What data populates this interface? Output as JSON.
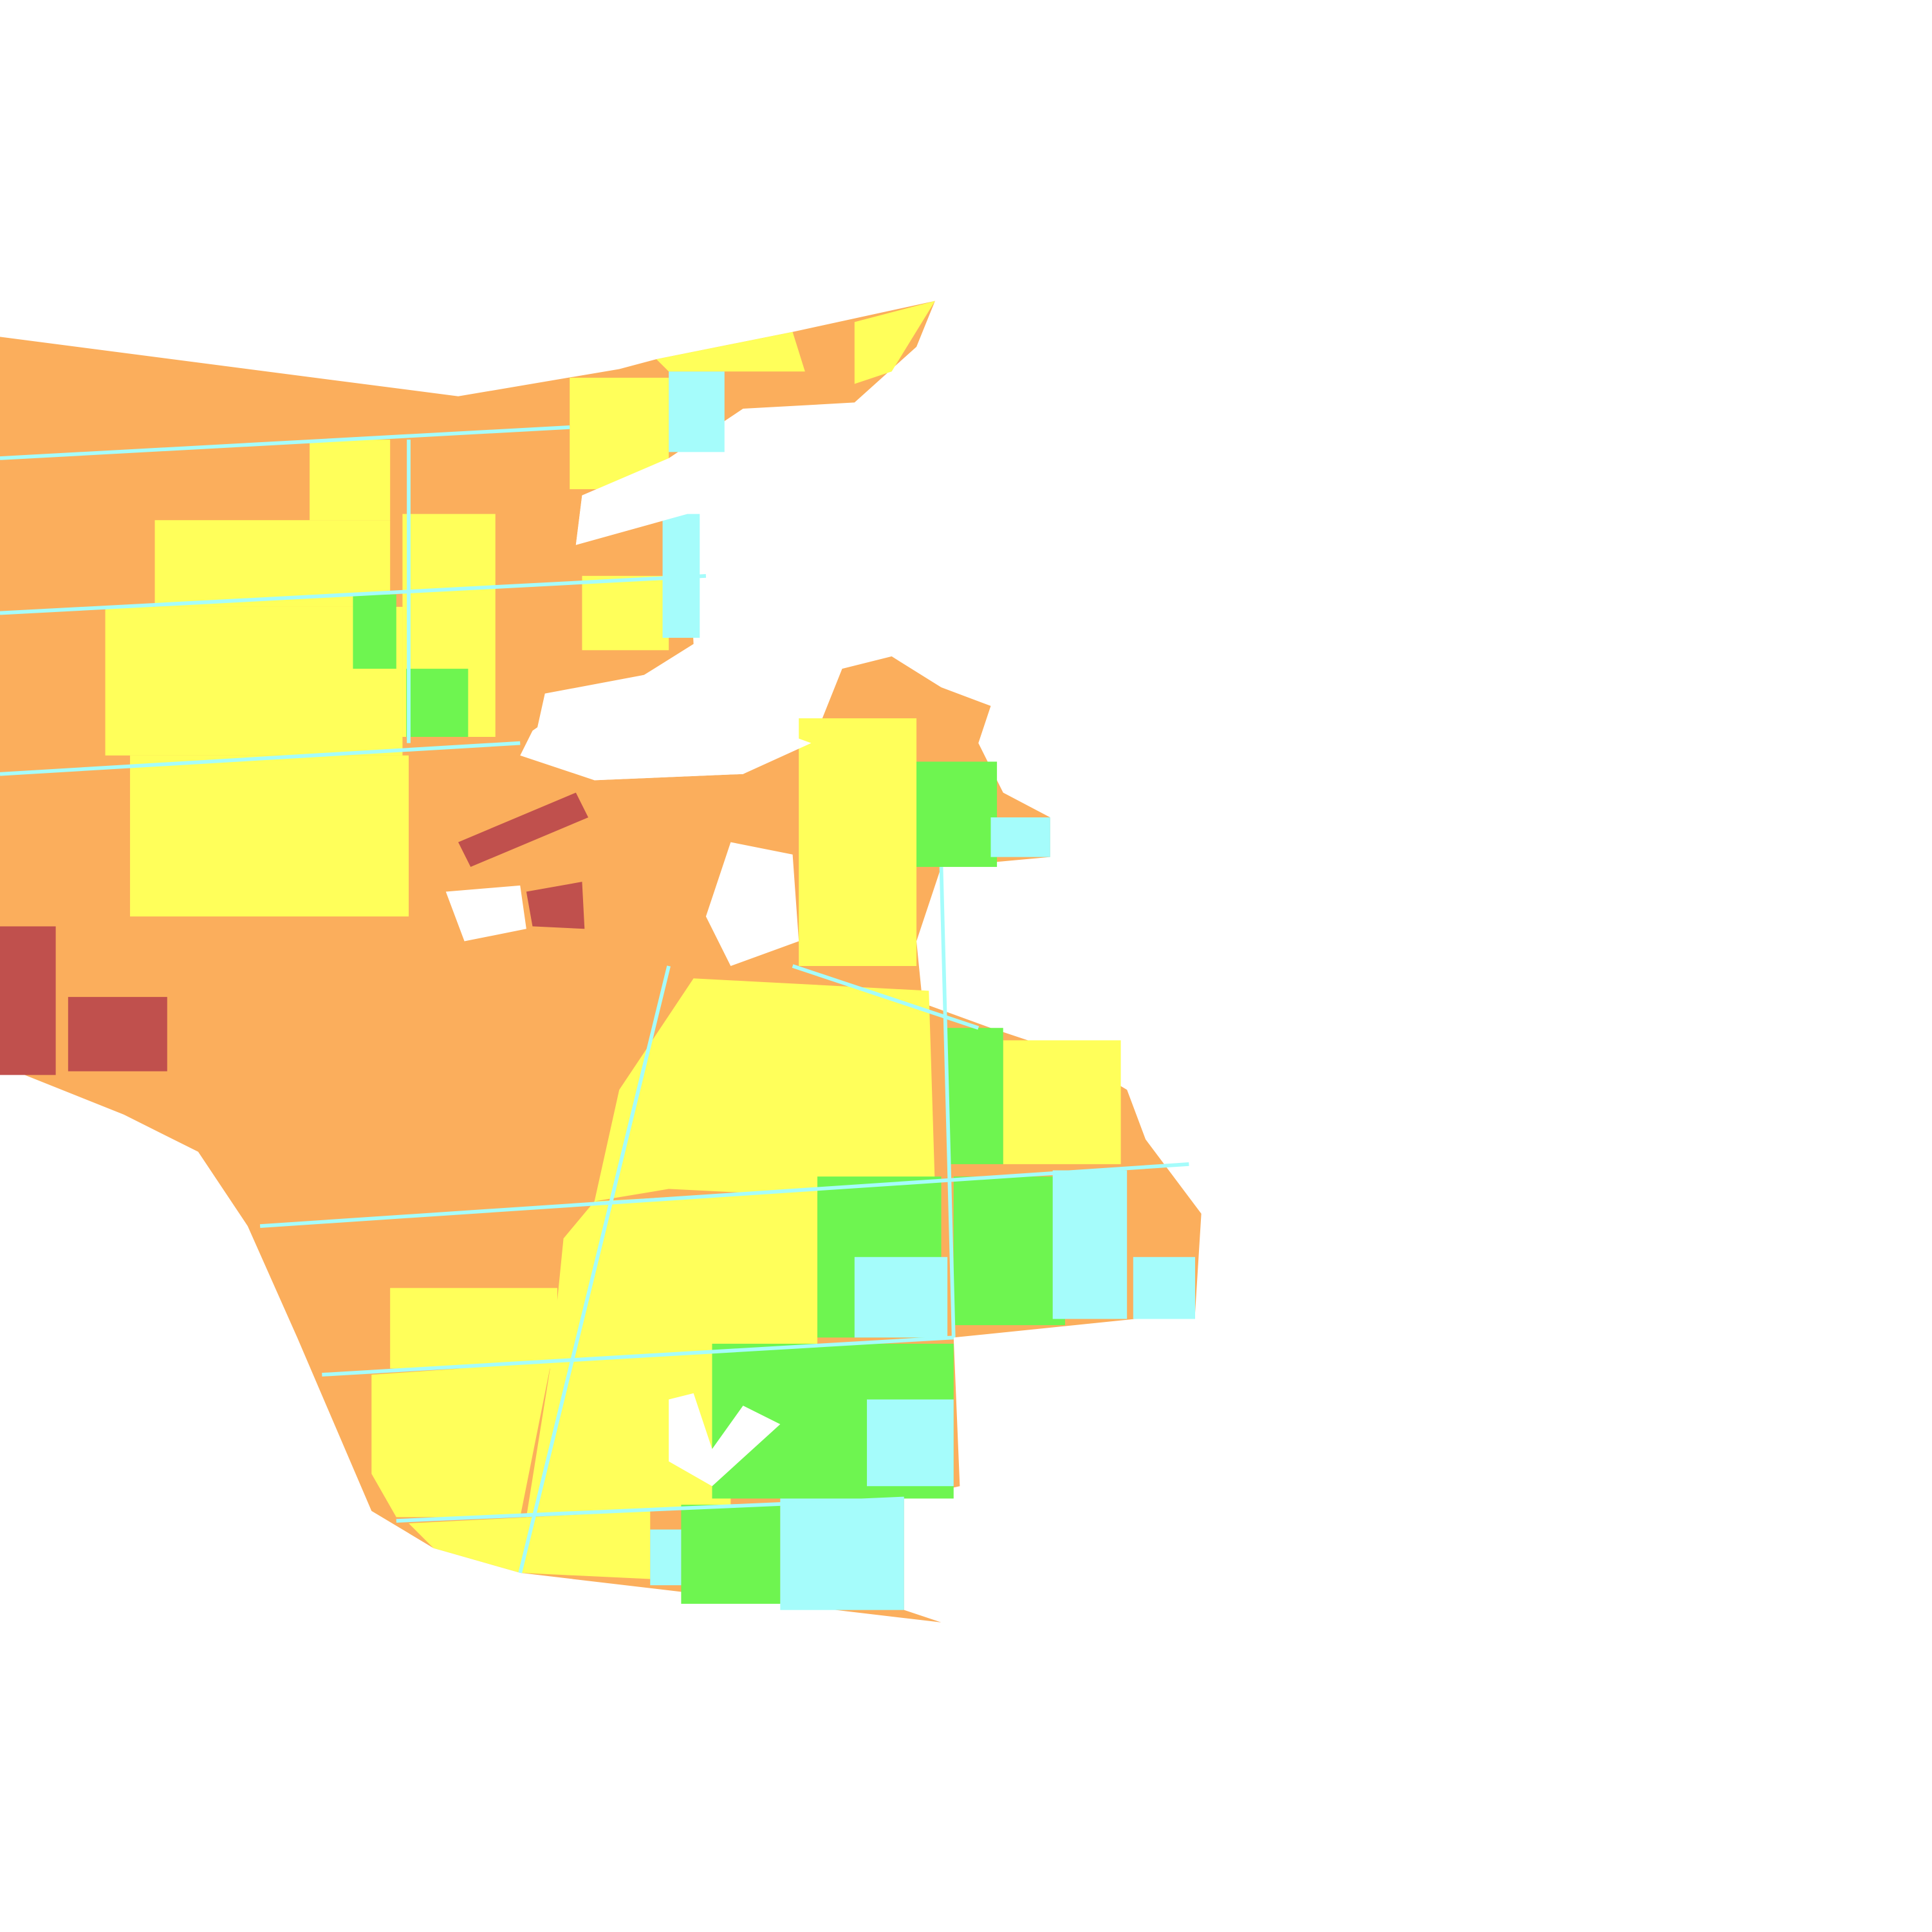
{
  "map": {
    "type": "classified-raster",
    "background": "#ffffff",
    "classes": [
      {
        "id": "dark-red",
        "color": "#c0504d"
      },
      {
        "id": "orange",
        "color": "#fbae5c"
      },
      {
        "id": "yellow",
        "color": "#ffff5a"
      },
      {
        "id": "green",
        "color": "#6ef550"
      },
      {
        "id": "cyan",
        "color": "#a5fcfb"
      }
    ]
  }
}
